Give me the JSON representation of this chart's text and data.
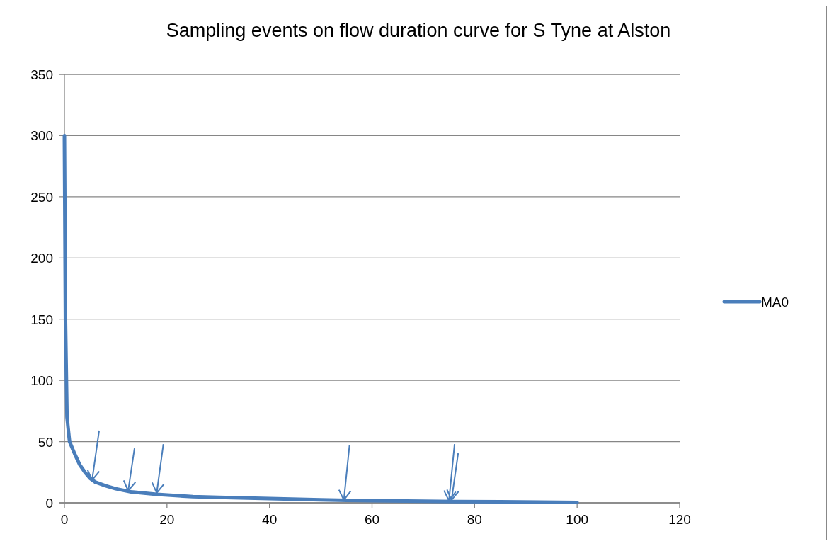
{
  "chart_data": {
    "type": "line",
    "title": "Sampling events on flow duration curve for S Tyne at Alston",
    "x": [
      0,
      0.2,
      0.5,
      1,
      2,
      3,
      4,
      5,
      6,
      8,
      10,
      13,
      18,
      25,
      30,
      40,
      50,
      55,
      60,
      70,
      76,
      85,
      100
    ],
    "series": [
      {
        "name": "MA0",
        "color": "#4a7ebb",
        "values": [
          300,
          150,
          70,
          50,
          40,
          31,
          25,
          20,
          17,
          14,
          11.5,
          9,
          7,
          5,
          4.5,
          3.5,
          2.5,
          2,
          1.8,
          1.3,
          1,
          0.8,
          0.3
        ]
      }
    ],
    "xlim": [
      0,
      120
    ],
    "xticks": [
      0,
      20,
      40,
      60,
      80,
      100,
      120
    ],
    "ylim": [
      0,
      350
    ],
    "yticks": [
      0,
      50,
      100,
      150,
      200,
      250,
      300,
      350
    ],
    "grid": "y",
    "legend": "right",
    "marker": "none",
    "line_style": "solid"
  }
}
